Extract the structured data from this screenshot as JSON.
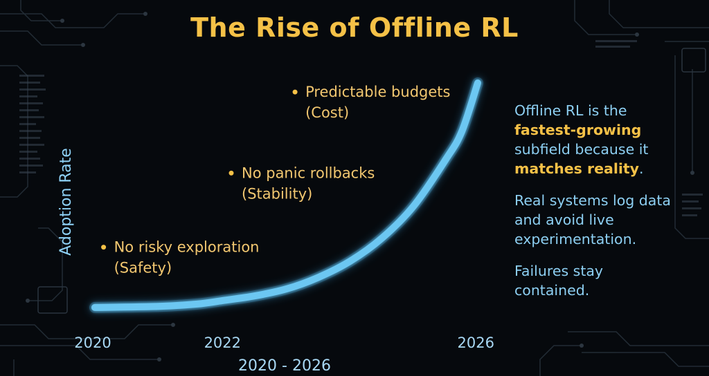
{
  "title": "The Rise of Offline RL",
  "colors": {
    "curve": "#6cc7f2",
    "axis": "#74c8f0",
    "accent": "#f5c147",
    "text_blue": "#8dcff2"
  },
  "chart_data": {
    "type": "line",
    "title": "The Rise of Offline RL",
    "ylabel": "Adoption Rate",
    "xlabel": "2020 - 2026",
    "x_ticks": [
      "2020",
      "2022",
      "2026"
    ],
    "xlim": [
      2020,
      2026
    ],
    "ylim": [
      0,
      1
    ],
    "y_ticks": [],
    "grid": false,
    "legend": "none",
    "series": [
      {
        "x": [
          2020,
          2021,
          2021.6,
          2022,
          2022.5,
          2023,
          2023.5,
          2024,
          2024.5,
          2025,
          2025.5,
          2025.75,
          2026
        ],
        "y": [
          0.03,
          0.035,
          0.045,
          0.06,
          0.08,
          0.11,
          0.16,
          0.23,
          0.33,
          0.47,
          0.67,
          0.79,
          1.0
        ]
      }
    ],
    "annotations": [
      {
        "x": 2020.3,
        "y": 0.27,
        "text": "No risky exploration",
        "subtext": "(Safety)"
      },
      {
        "x": 2022.3,
        "y": 0.59,
        "text": "No panic rollbacks",
        "subtext": "(Stability)"
      },
      {
        "x": 2023.3,
        "y": 0.94,
        "text": "Predictable budgets",
        "subtext": "(Cost)"
      }
    ]
  },
  "side_panel": {
    "p1_a": "Offline RL is the",
    "p1_b": "fastest-growing",
    "p1_c": "subfield because it",
    "p1_d": "matches reality",
    "p1_e": ".",
    "p2": "Real systems log data and avoid live experimentation.",
    "p3": "Failures stay contained."
  }
}
